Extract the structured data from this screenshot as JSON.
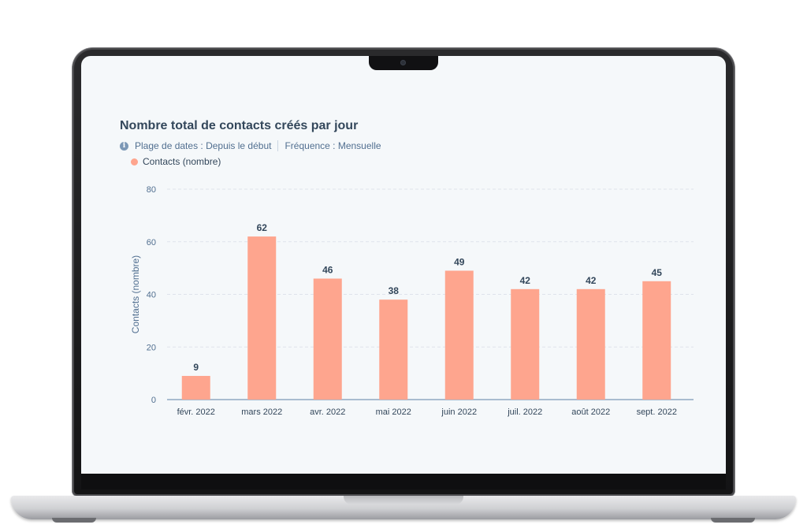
{
  "chart": {
    "title": "Nombre total de contacts créés par jour",
    "date_range_label": "Plage de dates : Depuis le début",
    "frequency_label": "Fréquence : Mensuelle",
    "info_icon": "info-icon",
    "legend_label": "Contacts (nombre)"
  },
  "colors": {
    "bar": "#fea58e",
    "title": "#33475b",
    "axis": "#516f90",
    "grid": "#dfe3eb",
    "baseline": "#7c98b6"
  },
  "chart_data": {
    "type": "bar",
    "categories": [
      "févr. 2022",
      "mars 2022",
      "avr. 2022",
      "mai 2022",
      "juin 2022",
      "juil. 2022",
      "août 2022",
      "sept. 2022"
    ],
    "series": [
      {
        "name": "Contacts (nombre)",
        "values": [
          9,
          62,
          46,
          38,
          49,
          42,
          42,
          45
        ]
      }
    ],
    "ylabel": "Contacts (nombre)",
    "xlabel": "",
    "ylim": [
      0,
      80
    ],
    "yticks": [
      0,
      20,
      40,
      60,
      80
    ],
    "data_labels": true,
    "grid": true,
    "legend_position": "top-left"
  }
}
